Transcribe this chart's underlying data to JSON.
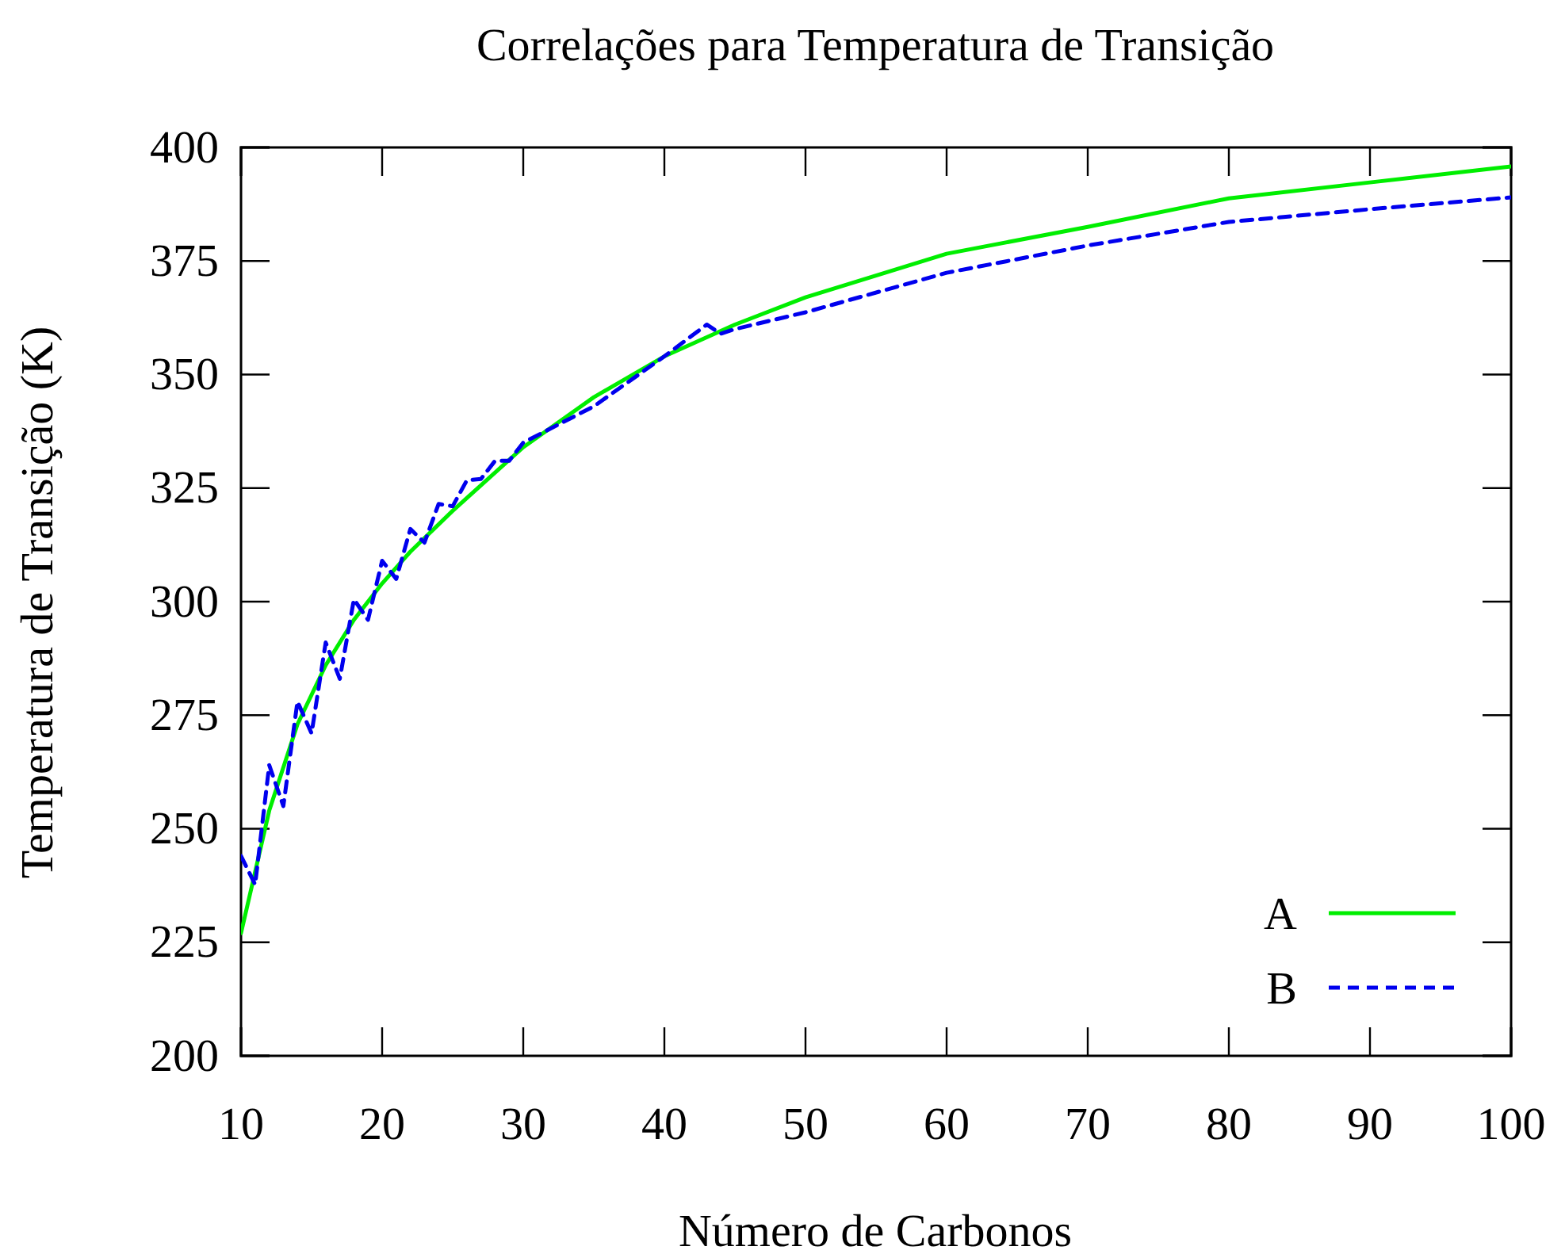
{
  "chart_data": {
    "type": "line",
    "title": "Correlações para Temperatura de Transição",
    "xlabel": "Número de Carbonos",
    "ylabel": "Temperatura de Transição (K)",
    "xlim": [
      10,
      100
    ],
    "xticks": [
      10,
      20,
      30,
      40,
      50,
      60,
      70,
      80,
      90,
      100
    ],
    "ylim": [
      200,
      400
    ],
    "yticks": [
      200,
      225,
      250,
      275,
      300,
      325,
      350,
      375,
      400
    ],
    "grid": false,
    "legend": "bottom right",
    "marker": "none",
    "series": [
      {
        "name": "A",
        "color": "#00ee00",
        "line_style": "solid",
        "x": [
          10,
          12,
          14,
          16,
          18,
          20,
          22,
          25,
          30,
          35,
          40,
          45,
          50,
          60,
          70,
          80,
          90,
          100
        ],
        "values": [
          227,
          254,
          273,
          286,
          296,
          304,
          311,
          320,
          334,
          345,
          354,
          361,
          367,
          376.6,
          382.5,
          388.8,
          392.3,
          395.8
        ]
      },
      {
        "name": "B",
        "color": "#0000ee",
        "line_style": "dashed",
        "x": [
          10,
          11,
          12,
          13,
          14,
          15,
          16,
          17,
          18,
          19,
          20,
          21,
          22,
          23,
          24,
          25,
          26,
          27,
          28,
          29,
          30,
          35,
          40,
          43,
          44,
          45,
          50,
          60,
          70,
          80,
          90,
          100
        ],
        "values": [
          244,
          237.7,
          264,
          255,
          278,
          271,
          291,
          283,
          300.5,
          296,
          309,
          305,
          316,
          313,
          321.5,
          321,
          326.7,
          327,
          331,
          331,
          335,
          343,
          354,
          361,
          359,
          360,
          363.7,
          372.4,
          378.4,
          383.6,
          386.4,
          389
        ]
      }
    ]
  }
}
